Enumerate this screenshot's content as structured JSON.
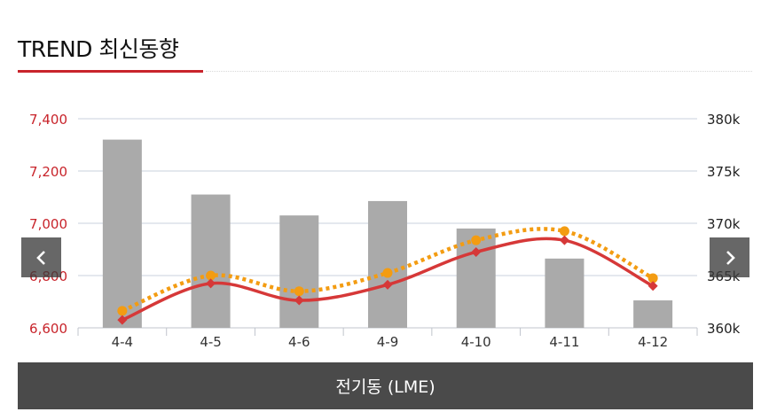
{
  "header": {
    "title": "TREND 최신동향"
  },
  "colors": {
    "accent": "#c8242b",
    "bar": "#aaaaaa",
    "line_red": "#d63838",
    "line_orange": "#f39c12",
    "left_axis_text": "#c8242b",
    "right_axis_text": "#222222",
    "grid": "#c8d0dc"
  },
  "nav": {
    "prev_icon": "chevron-left-icon",
    "next_icon": "chevron-right-icon"
  },
  "footer": {
    "label": "전기동 (LME)"
  },
  "chart_data": {
    "type": "bar",
    "categories": [
      "4-4",
      "4-5",
      "4-6",
      "4-9",
      "4-10",
      "4-11",
      "4-12"
    ],
    "y_left": {
      "range": [
        6600,
        7400
      ],
      "ticks": [
        "6,600",
        "6,800",
        "7,000",
        "7,200",
        "7,400"
      ]
    },
    "y_right": {
      "range": [
        360000,
        380000
      ],
      "ticks": [
        "360k",
        "365k",
        "370k",
        "375k",
        "380k"
      ]
    },
    "grid": true,
    "series": [
      {
        "kind": "bar",
        "axis": "left",
        "values": [
          7320,
          7110,
          7030,
          7085,
          6980,
          6865,
          6705
        ]
      },
      {
        "kind": "line",
        "axis": "left",
        "style": "solid",
        "marker": "diamond",
        "values": [
          6630,
          6770,
          6705,
          6765,
          6890,
          6935,
          6760
        ]
      },
      {
        "kind": "line",
        "axis": "left",
        "style": "dotted",
        "marker": "circle",
        "values": [
          6665,
          6800,
          6740,
          6810,
          6935,
          6970,
          6790
        ]
      }
    ]
  }
}
